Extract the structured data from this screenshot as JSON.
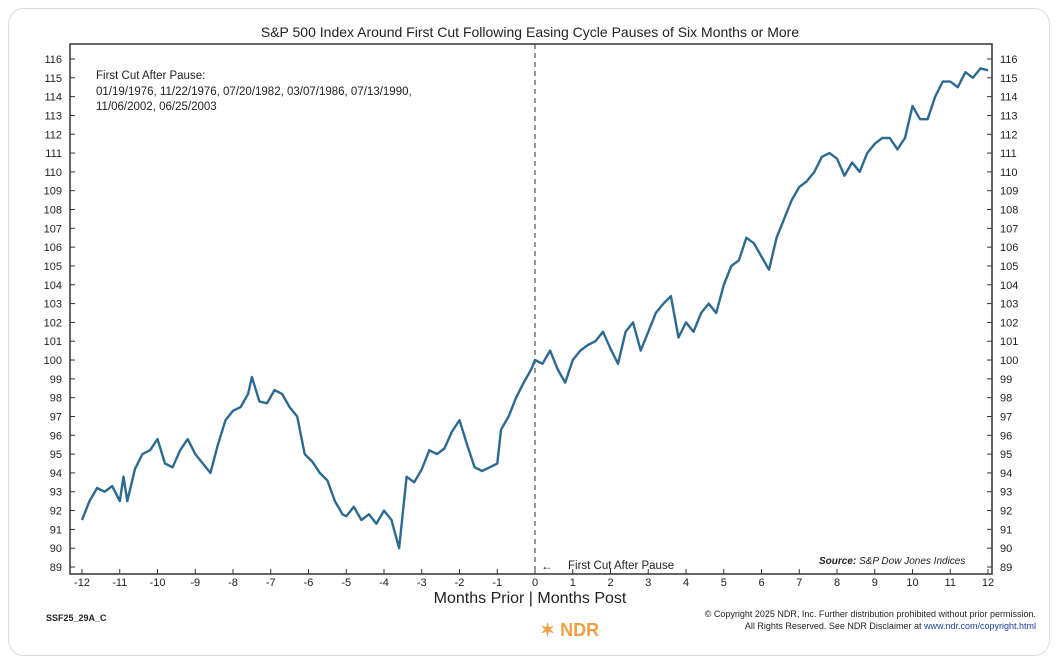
{
  "chart_data": {
    "type": "line",
    "title": "S&P 500 Index Around First Cut Following Easing Cycle Pauses of Six Months or More",
    "xlabel": "Months Prior | Months Post",
    "ylabel": "",
    "xlim": [
      -12,
      12
    ],
    "ylim": [
      89,
      116
    ],
    "xticks": [
      -12,
      -11,
      -10,
      -9,
      -8,
      -7,
      -6,
      -5,
      -4,
      -3,
      -2,
      -1,
      0,
      1,
      2,
      3,
      4,
      5,
      6,
      7,
      8,
      9,
      10,
      11,
      12
    ],
    "yticks": [
      89,
      90,
      91,
      92,
      93,
      94,
      95,
      96,
      97,
      98,
      99,
      100,
      101,
      102,
      103,
      104,
      105,
      106,
      107,
      108,
      109,
      110,
      111,
      112,
      113,
      114,
      115,
      116
    ],
    "annotation_title": "First Cut After Pause:",
    "annotation_lines": [
      "01/19/1976, 11/22/1976, 07/20/1982, 03/07/1986, 07/13/1990,",
      "11/06/2002, 06/25/2003"
    ],
    "vline_label": "First Cut After Pause",
    "source_label": "Source:",
    "source_text": "S&P Dow Jones Indices",
    "line_color": "#2b6a93",
    "series": [
      {
        "name": "S&P 500 Index",
        "x": [
          -12,
          -11.8,
          -11.6,
          -11.4,
          -11.2,
          -11,
          -10.9,
          -10.8,
          -10.6,
          -10.4,
          -10.2,
          -10,
          -9.8,
          -9.6,
          -9.4,
          -9.2,
          -9,
          -8.8,
          -8.6,
          -8.4,
          -8.2,
          -8,
          -7.8,
          -7.6,
          -7.5,
          -7.3,
          -7.1,
          -6.9,
          -6.7,
          -6.5,
          -6.3,
          -6.1,
          -5.9,
          -5.7,
          -5.5,
          -5.3,
          -5.1,
          -5,
          -4.8,
          -4.6,
          -4.4,
          -4.2,
          -4,
          -3.8,
          -3.6,
          -3.4,
          -3.2,
          -3,
          -2.8,
          -2.6,
          -2.4,
          -2.2,
          -2,
          -1.8,
          -1.6,
          -1.4,
          -1.2,
          -1,
          -0.9,
          -0.7,
          -0.5,
          -0.3,
          -0.1,
          0,
          0.2,
          0.4,
          0.6,
          0.8,
          1,
          1.2,
          1.4,
          1.6,
          1.8,
          2,
          2.2,
          2.4,
          2.6,
          2.8,
          3,
          3.2,
          3.4,
          3.6,
          3.8,
          4,
          4.2,
          4.4,
          4.6,
          4.8,
          5,
          5.2,
          5.4,
          5.6,
          5.8,
          6,
          6.2,
          6.4,
          6.6,
          6.8,
          7,
          7.2,
          7.4,
          7.6,
          7.8,
          8,
          8.2,
          8.4,
          8.6,
          8.8,
          9,
          9.2,
          9.4,
          9.6,
          9.8,
          10,
          10.2,
          10.4,
          10.6,
          10.8,
          11,
          11.2,
          11.4,
          11.6,
          11.8,
          12
        ],
        "y": [
          91.5,
          92.5,
          93.2,
          93,
          93.3,
          92.5,
          93.8,
          92.5,
          94.2,
          95,
          95.2,
          95.8,
          94.5,
          94.3,
          95.2,
          95.8,
          95,
          94.5,
          94,
          95.5,
          96.8,
          97.3,
          97.5,
          98.2,
          99.1,
          97.8,
          97.7,
          98.4,
          98.2,
          97.5,
          97,
          95,
          94.6,
          94,
          93.6,
          92.5,
          91.8,
          91.7,
          92.2,
          91.5,
          91.8,
          91.3,
          92,
          91.5,
          90,
          93.8,
          93.5,
          94.2,
          95.2,
          95,
          95.3,
          96.2,
          96.8,
          95.5,
          94.3,
          94.1,
          94.3,
          94.5,
          96.3,
          97,
          98,
          98.8,
          99.5,
          100,
          99.8,
          100.5,
          99.5,
          98.8,
          100,
          100.5,
          100.8,
          101,
          101.5,
          100.6,
          99.8,
          101.5,
          102,
          100.5,
          101.5,
          102.5,
          103,
          103.4,
          101.2,
          102,
          101.5,
          102.5,
          103,
          102.5,
          104,
          105,
          105.3,
          106.5,
          106.2,
          105.5,
          104.8,
          106.5,
          107.5,
          108.5,
          109.2,
          109.5,
          110,
          110.8,
          111,
          110.7,
          109.8,
          110.5,
          110,
          111,
          111.5,
          111.8,
          111.8,
          111.2,
          111.8,
          113.5,
          112.8,
          112.8,
          114,
          114.8,
          114.8,
          114.5,
          115.3,
          115,
          115.5,
          115.4
        ]
      }
    ]
  },
  "footer": {
    "code": "SSF25_29A_C",
    "copyright": "© Copyright 2025 NDR, Inc. Further distribution prohibited without prior permission.",
    "rights": "All Rights Reserved. See NDR Disclaimer at ",
    "url": "www.ndr.com/copyright.html",
    "logo": "NDR"
  }
}
